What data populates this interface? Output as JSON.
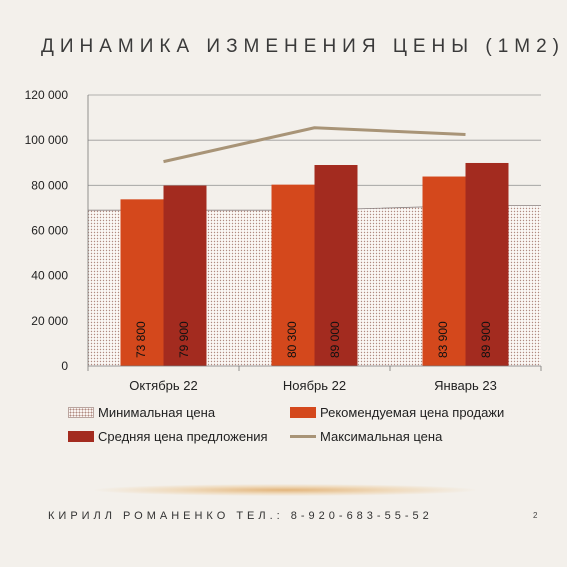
{
  "slide": {
    "title": "ДИНАМИКА ИЗМЕНЕНИЯ ЦЕНЫ (1М2)",
    "footer": "КИРИЛЛ РОМАНЕНКО ТЕЛ.: 8-920-683-55-52",
    "page_number": "2"
  },
  "chart_data": {
    "type": "bar",
    "title": "ДИНАМИКА ИЗМЕНЕНИЯ ЦЕНЫ (1М2)",
    "categories": [
      "Октябрь 22",
      "Ноябрь 22",
      "Январь 23"
    ],
    "ylim": [
      0,
      120000
    ],
    "yticks": [
      0,
      20000,
      40000,
      60000,
      80000,
      100000,
      120000
    ],
    "ytick_labels": [
      "0",
      "20 000",
      "40 000",
      "60 000",
      "80 000",
      "100 000",
      "120 000"
    ],
    "grid": true,
    "legend_position": "bottom",
    "series": [
      {
        "name": "Минимальная цена",
        "kind": "area",
        "color": "#fbf8f5",
        "values": [
          69000,
          69000,
          71000
        ]
      },
      {
        "name": "Рекомендуемая цена продажи",
        "kind": "bar",
        "color": "#d4481c",
        "values": [
          73800,
          80300,
          83900
        ],
        "labels": [
          "73 800",
          "80 300",
          "83 900"
        ]
      },
      {
        "name": "Средняя цена предложения",
        "kind": "bar",
        "color": "#a32b1f",
        "values": [
          79900,
          89000,
          89900
        ],
        "labels": [
          "79 900",
          "89 000",
          "89 900"
        ]
      },
      {
        "name": "Максимальная цена",
        "kind": "line",
        "color": "#a89477",
        "values": [
          90500,
          105500,
          102500
        ]
      }
    ]
  }
}
